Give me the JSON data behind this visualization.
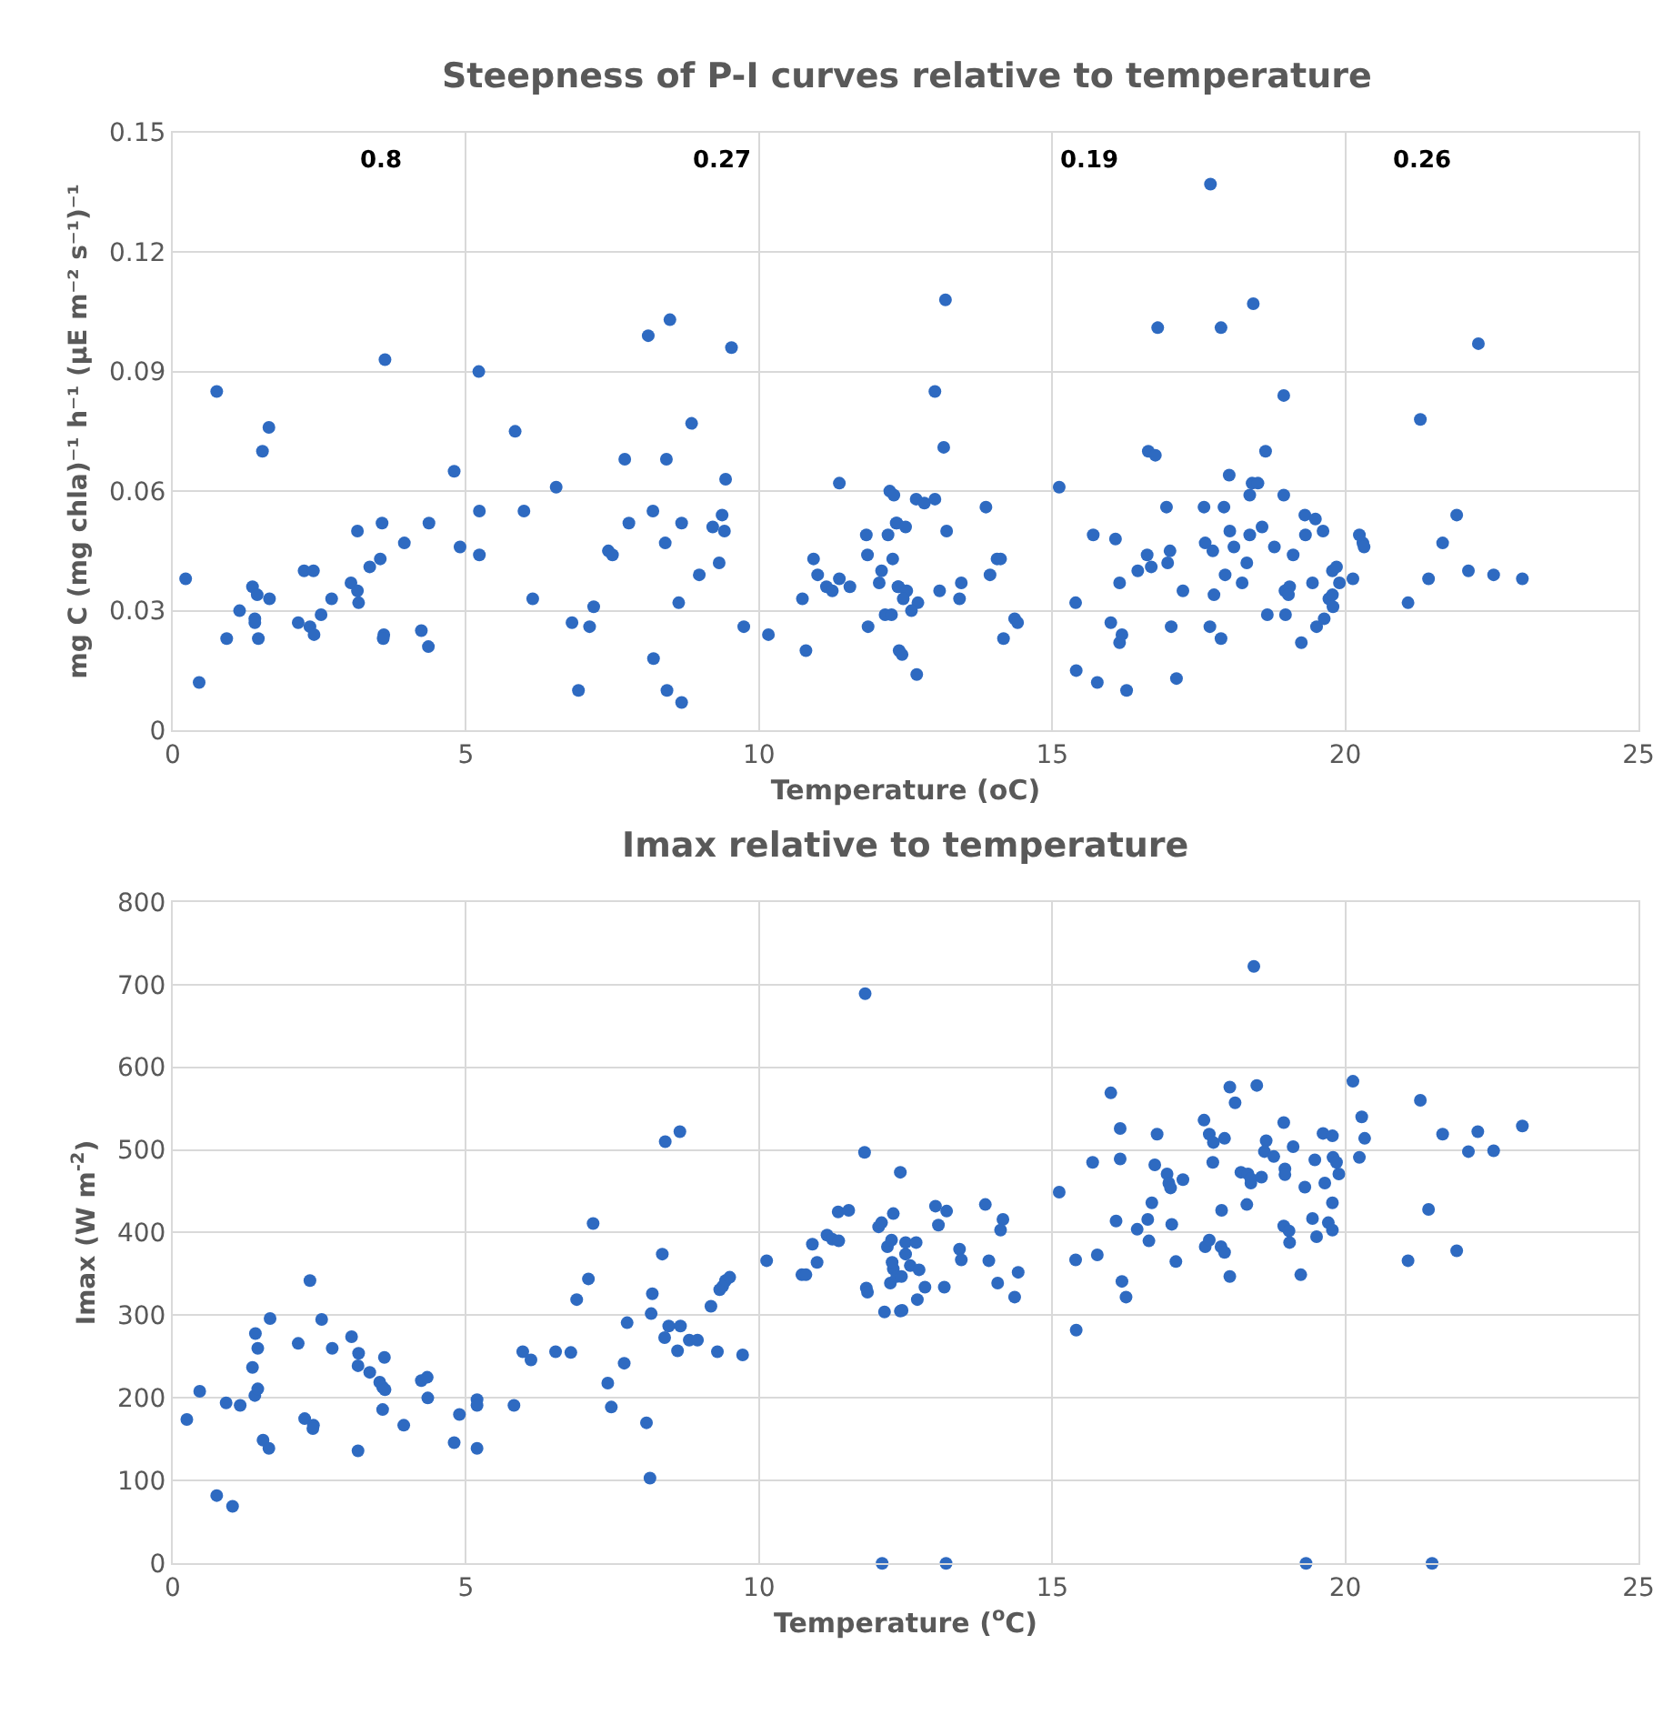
{
  "chart_data": [
    {
      "type": "scatter",
      "title": "Steepness of P-I curves relative to temperature",
      "xlabel": "Temperature (oC)",
      "ylabel": "mg C (mg chla)⁻¹ h⁻¹ (µE m⁻² s⁻¹)⁻¹",
      "xlim": [
        0,
        25
      ],
      "xticks": [
        0,
        5,
        10,
        15,
        20,
        25
      ],
      "ylim": [
        0,
        0.15
      ],
      "yticks": [
        0,
        0.03,
        0.06,
        0.09,
        0.12,
        0.15
      ],
      "grid": true,
      "marker": "circle",
      "annotations": [
        "0.8",
        "0.27",
        "0.19",
        "0.26"
      ],
      "series": [
        {
          "color": "#2e6ac1",
          "x": [
            0.22,
            0.45,
            0.75,
            0.92,
            1.14,
            1.36,
            1.44,
            1.4,
            1.4,
            1.46,
            1.53,
            1.64,
            1.65,
            2.14,
            2.24,
            2.4,
            2.34,
            2.41,
            2.53,
            2.71,
            3.04,
            3.15,
            3.17,
            3.15,
            3.36,
            3.54,
            3.57,
            3.6,
            3.59,
            3.62,
            3.95,
            4.24,
            4.36,
            4.37,
            4.8,
            4.9,
            5.22,
            5.23,
            5.23,
            5.84,
            5.99,
            6.14,
            6.54,
            6.81,
            6.92,
            7.11,
            7.18,
            7.43,
            7.5,
            7.71,
            7.78,
            8.11,
            8.19,
            8.2,
            8.4,
            8.42,
            8.43,
            8.48,
            8.63,
            8.68,
            8.68,
            8.85,
            8.98,
            9.21,
            9.32,
            9.37,
            9.41,
            9.43,
            9.53,
            9.74,
            10.16,
            10.74,
            10.8,
            10.93,
            11.0,
            11.15,
            11.25,
            11.37,
            11.37,
            11.55,
            11.83,
            11.85,
            11.86,
            12.05,
            12.09,
            12.15,
            12.26,
            12.2,
            12.23,
            12.3,
            12.28,
            12.34,
            12.37,
            12.39,
            12.35,
            12.5,
            12.38,
            12.52,
            12.46,
            12.71,
            12.6,
            12.44,
            12.69,
            12.68,
            12.82,
            13.0,
            13.0,
            13.15,
            13.18,
            13.2,
            13.08,
            13.42,
            13.45,
            13.87,
            13.94,
            14.06,
            14.12,
            14.17,
            14.36,
            14.41,
            15.12,
            15.4,
            15.41,
            15.7,
            15.77,
            16.0,
            16.08,
            16.15,
            16.19,
            16.15,
            16.27,
            16.46,
            16.62,
            16.64,
            16.76,
            16.69,
            16.8,
            16.95,
            16.97,
            17.01,
            17.03,
            17.12,
            17.23,
            17.59,
            17.61,
            17.7,
            17.69,
            17.74,
            17.76,
            17.88,
            17.88,
            17.93,
            17.95,
            18.02,
            18.03,
            18.1,
            18.24,
            18.32,
            18.37,
            18.37,
            18.43,
            18.41,
            18.51,
            18.58,
            18.64,
            18.67,
            18.79,
            18.95,
            18.95,
            18.98,
            18.97,
            19.05,
            19.03,
            19.11,
            19.25,
            19.31,
            19.32,
            19.44,
            19.49,
            19.51,
            19.62,
            19.64,
            19.78,
            19.85,
            19.72,
            19.78,
            19.79,
            19.9,
            20.13,
            20.24,
            20.3,
            20.32,
            21.07,
            21.28,
            21.42,
            21.66,
            21.9,
            22.1,
            22.27,
            22.53,
            23.02
          ],
          "values": [
            0.038,
            0.012,
            0.085,
            0.023,
            0.03,
            0.036,
            0.034,
            0.028,
            0.027,
            0.023,
            0.07,
            0.076,
            0.033,
            0.027,
            0.04,
            0.04,
            0.026,
            0.024,
            0.029,
            0.033,
            0.037,
            0.035,
            0.032,
            0.05,
            0.041,
            0.043,
            0.052,
            0.024,
            0.023,
            0.093,
            0.047,
            0.025,
            0.021,
            0.052,
            0.065,
            0.046,
            0.09,
            0.055,
            0.044,
            0.075,
            0.055,
            0.033,
            0.061,
            0.027,
            0.01,
            0.026,
            0.031,
            0.045,
            0.044,
            0.068,
            0.052,
            0.099,
            0.055,
            0.018,
            0.047,
            0.068,
            0.01,
            0.103,
            0.032,
            0.007,
            0.052,
            0.077,
            0.039,
            0.051,
            0.042,
            0.054,
            0.05,
            0.063,
            0.096,
            0.026,
            0.024,
            0.033,
            0.02,
            0.043,
            0.039,
            0.036,
            0.035,
            0.062,
            0.038,
            0.036,
            0.049,
            0.044,
            0.026,
            0.037,
            0.04,
            0.029,
            0.029,
            0.049,
            0.06,
            0.059,
            0.043,
            0.052,
            0.036,
            0.02,
            0.052,
            0.051,
            0.036,
            0.035,
            0.033,
            0.032,
            0.03,
            0.019,
            0.014,
            0.058,
            0.057,
            0.058,
            0.085,
            0.071,
            0.108,
            0.05,
            0.035,
            0.033,
            0.037,
            0.056,
            0.039,
            0.043,
            0.043,
            0.023,
            0.028,
            0.027,
            0.061,
            0.032,
            0.015,
            0.049,
            0.012,
            0.027,
            0.048,
            0.037,
            0.024,
            0.022,
            0.01,
            0.04,
            0.044,
            0.07,
            0.069,
            0.041,
            0.101,
            0.056,
            0.042,
            0.045,
            0.026,
            0.013,
            0.035,
            0.056,
            0.047,
            0.137,
            0.026,
            0.045,
            0.034,
            0.101,
            0.023,
            0.056,
            0.039,
            0.064,
            0.05,
            0.046,
            0.037,
            0.042,
            0.059,
            0.049,
            0.107,
            0.062,
            0.062,
            0.051,
            0.07,
            0.029,
            0.046,
            0.084,
            0.059,
            0.029,
            0.035,
            0.036,
            0.034,
            0.044,
            0.022,
            0.054,
            0.049,
            0.037,
            0.053,
            0.026,
            0.05,
            0.028,
            0.04,
            0.041,
            0.033,
            0.034,
            0.031,
            0.037,
            0.038,
            0.049,
            0.047,
            0.046,
            0.032,
            0.078,
            0.038,
            0.047,
            0.054,
            0.04,
            0.097,
            0.039,
            0.038
          ]
        }
      ]
    },
    {
      "type": "scatter",
      "title": "Imax relative to temperature",
      "xlabel": "Temperature ($^{o}$C)",
      "ylabel": "Imax (W m$^{-2}$)",
      "xlim": [
        0,
        25
      ],
      "xticks": [
        0,
        5,
        10,
        15,
        20,
        25
      ],
      "ylim": [
        0,
        800
      ],
      "yticks": [
        0,
        100,
        200,
        300,
        400,
        500,
        600,
        700,
        800
      ],
      "grid": true,
      "marker": "circle",
      "series": [
        {
          "color": "#2e6ac1",
          "x": [
            0.24,
            0.46,
            0.75,
            0.91,
            1.02,
            1.15,
            1.36,
            1.4,
            1.45,
            1.41,
            1.45,
            1.54,
            1.64,
            1.66,
            2.14,
            2.25,
            2.4,
            2.39,
            2.34,
            2.54,
            2.72,
            3.05,
            3.17,
            3.16,
            3.16,
            3.36,
            3.53,
            3.58,
            3.62,
            3.61,
            3.58,
            3.94,
            4.24,
            4.34,
            4.35,
            4.8,
            4.89,
            5.19,
            5.19,
            5.19,
            5.82,
            5.97,
            6.11,
            6.53,
            6.79,
            6.89,
            7.09,
            7.17,
            7.42,
            7.48,
            7.7,
            7.75,
            8.08,
            8.14,
            8.16,
            8.18,
            8.35,
            8.4,
            8.65,
            8.39,
            8.46,
            8.66,
            8.61,
            8.81,
            8.95,
            9.18,
            9.29,
            9.33,
            9.38,
            9.43,
            9.5,
            9.72,
            10.13,
            10.73,
            10.8,
            10.91,
            10.99,
            11.16,
            11.25,
            11.36,
            11.35,
            11.53,
            11.81,
            11.8,
            11.83,
            11.85,
            12.04,
            12.09,
            12.1,
            12.14,
            12.19,
            12.26,
            12.29,
            12.29,
            12.27,
            12.24,
            12.35,
            12.41,
            12.41,
            12.5,
            12.68,
            12.5,
            12.58,
            12.73,
            12.43,
            12.83,
            12.7,
            12.44,
            13.16,
            13.01,
            13.2,
            13.06,
            13.19,
            13.42,
            13.45,
            13.86,
            13.92,
            14.16,
            14.12,
            14.07,
            14.42,
            14.36,
            15.12,
            15.4,
            15.41,
            15.69,
            15.77,
            16.0,
            16.16,
            16.16,
            16.09,
            16.19,
            16.26,
            16.45,
            16.63,
            16.65,
            16.7,
            16.75,
            16.79,
            16.96,
            16.99,
            17.02,
            17.04,
            17.11,
            17.23,
            17.59,
            17.68,
            17.75,
            17.94,
            17.74,
            17.61,
            17.68,
            17.89,
            17.88,
            17.94,
            18.03,
            18.12,
            18.03,
            18.22,
            18.34,
            18.39,
            18.39,
            18.32,
            18.44,
            18.49,
            18.57,
            18.65,
            18.62,
            18.78,
            18.95,
            18.97,
            18.97,
            18.95,
            19.04,
            19.05,
            19.11,
            19.24,
            19.31,
            19.33,
            19.44,
            19.48,
            19.51,
            19.62,
            19.78,
            19.65,
            19.71,
            19.78,
            19.78,
            19.79,
            19.85,
            19.89,
            20.13,
            20.24,
            20.28,
            20.33,
            21.07,
            21.28,
            21.42,
            21.48,
            21.66,
            21.9,
            22.1,
            22.26,
            22.53,
            23.02
          ],
          "values": [
            174,
            208,
            82,
            194,
            69,
            191,
            237,
            203,
            211,
            278,
            260,
            149,
            139,
            296,
            266,
            175,
            167,
            163,
            342,
            295,
            260,
            274,
            254,
            239,
            136,
            231,
            219,
            213,
            210,
            249,
            186,
            167,
            221,
            225,
            200,
            146,
            180,
            198,
            191,
            139,
            191,
            256,
            246,
            256,
            255,
            319,
            344,
            411,
            218,
            189,
            242,
            291,
            170,
            103,
            302,
            326,
            374,
            510,
            522,
            273,
            287,
            287,
            257,
            270,
            270,
            311,
            256,
            331,
            335,
            342,
            346,
            252,
            366,
            349,
            349,
            386,
            364,
            397,
            392,
            390,
            425,
            427,
            689,
            497,
            333,
            328,
            407,
            412,
            0,
            304,
            383,
            391,
            423,
            356,
            364,
            339,
            347,
            305,
            473,
            388,
            388,
            374,
            360,
            355,
            347,
            334,
            319,
            306,
            334,
            432,
            426,
            409,
            0,
            380,
            367,
            434,
            366,
            416,
            403,
            339,
            352,
            322,
            449,
            367,
            282,
            485,
            373,
            569,
            526,
            489,
            414,
            341,
            322,
            404,
            416,
            390,
            436,
            482,
            519,
            471,
            460,
            454,
            410,
            365,
            464,
            536,
            519,
            509,
            514,
            485,
            383,
            391,
            427,
            383,
            376,
            576,
            557,
            347,
            473,
            471,
            460,
            465,
            434,
            722,
            578,
            467,
            511,
            498,
            492,
            533,
            477,
            470,
            408,
            402,
            388,
            504,
            349,
            455,
            0,
            417,
            488,
            395,
            520,
            517,
            460,
            412,
            403,
            436,
            491,
            485,
            471,
            583,
            491,
            540,
            514,
            366,
            560,
            428,
            0,
            519,
            378,
            498,
            522,
            499,
            529
          ]
        }
      ]
    }
  ]
}
